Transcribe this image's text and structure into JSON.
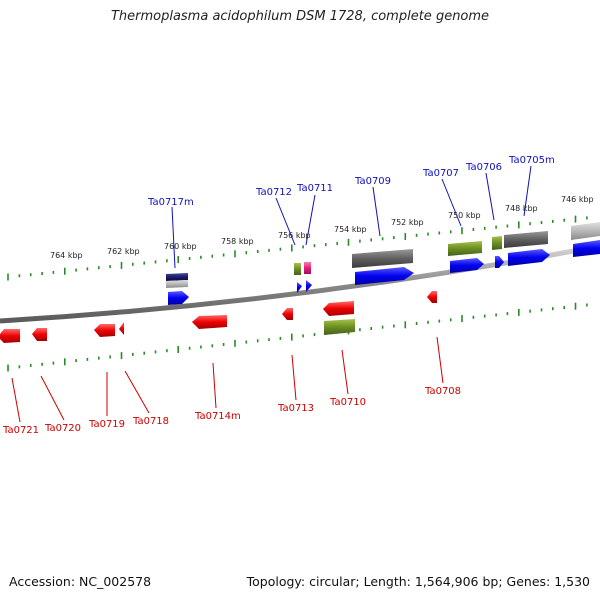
{
  "title": "Thermoplasma acidophilum DSM 1728, complete genome",
  "footer": {
    "accession": "Accession: NC_002578",
    "summary": "Topology: circular; Length: 1,564,906 bp; Genes: 1,530"
  },
  "scale": {
    "kbp_labels": [
      "764 kbp",
      "762 kbp",
      "760 kbp",
      "758 kbp",
      "756 kbp",
      "754 kbp",
      "752 kbp",
      "750 kbp",
      "748 kbp",
      "746 kbp"
    ]
  },
  "genes": {
    "top": [
      "Ta0717m",
      "Ta0712",
      "Ta0711",
      "Ta0709",
      "Ta0707",
      "Ta0706",
      "Ta0705m"
    ],
    "bottom": [
      "Ta0721",
      "Ta0720",
      "Ta0719",
      "Ta0718",
      "Ta0714m",
      "Ta0713",
      "Ta0710",
      "Ta0708"
    ]
  },
  "colors": {
    "forward_label": "#1111bb",
    "reverse_label": "#cc0000",
    "tick": "#2a8a2a",
    "backbone": "#808080",
    "cds_forward": "#0000ee",
    "cds_reverse": "#ee0000",
    "cog_gray": "#666666",
    "cog_olive": "#6b8e23",
    "cog_navy": "#1a1a6e",
    "cog_magenta": "#e0207a"
  }
}
